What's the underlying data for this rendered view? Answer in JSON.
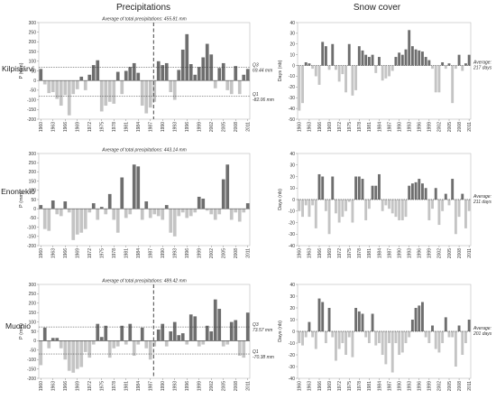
{
  "headers": {
    "precip": "Precipitations",
    "snow": "Snow cover"
  },
  "stations": [
    "Kilpisjärvi",
    "Enontekiö",
    "Muonio"
  ],
  "chart_data": [
    {
      "type": "bar",
      "station": "Kilpisjärvi",
      "variable": "precipitation",
      "title": "Average of total precipitations: 455.81 mm",
      "ylabel": "P (mm)",
      "ylim": [
        -200,
        300
      ],
      "yticks": [
        -200,
        -150,
        -100,
        -50,
        0,
        50,
        100,
        150,
        200,
        250,
        300
      ],
      "x": [
        1960,
        1961,
        1962,
        1963,
        1964,
        1965,
        1966,
        1967,
        1968,
        1969,
        1970,
        1971,
        1972,
        1973,
        1974,
        1975,
        1976,
        1977,
        1978,
        1979,
        1980,
        1981,
        1982,
        1983,
        1984,
        1985,
        1986,
        1987,
        1988,
        1989,
        1990,
        1991,
        1992,
        1993,
        1994,
        1995,
        1996,
        1997,
        1998,
        1999,
        2000,
        2001,
        2002,
        2003,
        2004,
        2005,
        2006,
        2007,
        2008,
        2009,
        2010,
        2011
      ],
      "xticks": [
        1960,
        1963,
        1966,
        1969,
        1972,
        1975,
        1978,
        1981,
        1984,
        1987,
        1990,
        1993,
        1996,
        1999,
        2002,
        2005,
        2008,
        2011
      ],
      "values": [
        60,
        -20,
        -65,
        -60,
        -95,
        -130,
        -75,
        -180,
        -70,
        -45,
        20,
        -50,
        30,
        80,
        105,
        -160,
        -130,
        -110,
        -120,
        45,
        -70,
        50,
        70,
        90,
        40,
        -130,
        -170,
        -140,
        -110,
        100,
        80,
        90,
        -60,
        -100,
        55,
        160,
        240,
        85,
        30,
        70,
        120,
        190,
        135,
        -40,
        65,
        90,
        -50,
        -70,
        75,
        -70,
        30,
        60
      ],
      "thresholds": [
        {
          "label": "Q3",
          "value_label": "69.44 mm",
          "value": 69.44
        },
        {
          "label": "Q1",
          "value_label": "-82.06 mm",
          "value": -82.06
        }
      ],
      "break_year": 1988.3
    },
    {
      "type": "bar",
      "station": "Kilpisjärvi",
      "variable": "snow cover",
      "ylabel": "Days (nb)",
      "ylim": [
        -50,
        40
      ],
      "yticks": [
        -50,
        -40,
        -30,
        -20,
        -10,
        0,
        10,
        20,
        30,
        40
      ],
      "x": [
        1960,
        1961,
        1962,
        1963,
        1964,
        1965,
        1966,
        1967,
        1968,
        1969,
        1970,
        1971,
        1972,
        1973,
        1974,
        1975,
        1976,
        1977,
        1978,
        1979,
        1980,
        1981,
        1982,
        1983,
        1984,
        1985,
        1986,
        1987,
        1988,
        1989,
        1990,
        1991,
        1992,
        1993,
        1994,
        1995,
        1996,
        1997,
        1998,
        1999,
        2000,
        2001,
        2002,
        2003,
        2004,
        2005,
        2006,
        2007,
        2008,
        2009,
        2010,
        2011
      ],
      "xticks": [
        1960,
        1963,
        1966,
        1969,
        1972,
        1975,
        1978,
        1981,
        1984,
        1987,
        1990,
        1993,
        1996,
        1999,
        2002,
        2005,
        2008,
        2011
      ],
      "values": [
        -42,
        -35,
        3,
        2,
        -3,
        -10,
        -18,
        22,
        18,
        -4,
        20,
        -4,
        -15,
        -8,
        -25,
        20,
        -28,
        -23,
        18,
        14,
        10,
        8,
        10,
        -7,
        8,
        -14,
        -12,
        -10,
        -5,
        8,
        12,
        10,
        15,
        33,
        18,
        15,
        14,
        13,
        8,
        5,
        -3,
        -25,
        -25,
        3,
        -3,
        2,
        -35,
        -3,
        10,
        -5,
        2,
        10
      ],
      "annotation": {
        "label": "Average:",
        "value_label": "217 days"
      }
    },
    {
      "type": "bar",
      "station": "Enontekiö",
      "variable": "precipitation",
      "title": "Average of total precipitations: 443.14 mm",
      "ylabel": "P (mm)",
      "ylim": [
        -200,
        300
      ],
      "yticks": [
        -200,
        -150,
        -100,
        -50,
        0,
        50,
        100,
        150,
        200,
        250,
        300
      ],
      "x": [
        1960,
        1961,
        1962,
        1963,
        1964,
        1965,
        1966,
        1967,
        1968,
        1969,
        1970,
        1971,
        1972,
        1973,
        1974,
        1975,
        1976,
        1977,
        1978,
        1979,
        1980,
        1981,
        1982,
        1983,
        1984,
        1985,
        1986,
        1987,
        1988,
        1989,
        1990,
        1991,
        1992,
        1993,
        1994,
        1995,
        1996,
        1997,
        1998,
        1999,
        2000,
        2001,
        2002,
        2003,
        2004,
        2005,
        2006,
        2007,
        2008,
        2009,
        2010,
        2011
      ],
      "xticks": [
        1960,
        1963,
        1966,
        1969,
        1972,
        1975,
        1978,
        1981,
        1984,
        1987,
        1990,
        1993,
        1996,
        1999,
        2002,
        2005,
        2008,
        2011
      ],
      "values": [
        20,
        -110,
        -120,
        45,
        -30,
        -40,
        40,
        -20,
        -170,
        -140,
        -130,
        -110,
        -20,
        30,
        -60,
        10,
        -30,
        80,
        -60,
        -130,
        170,
        -50,
        -30,
        240,
        230,
        -60,
        40,
        -50,
        -30,
        -40,
        -60,
        20,
        -130,
        -150,
        -40,
        -20,
        -50,
        -40,
        -20,
        65,
        55,
        -10,
        -30,
        -60,
        -30,
        160,
        240,
        -60,
        -20,
        -70,
        -20,
        30
      ],
      "break_year": null
    },
    {
      "type": "bar",
      "station": "Enontekiö",
      "variable": "snow cover",
      "ylabel": "Days (nb)",
      "ylim": [
        -40,
        40
      ],
      "yticks": [
        -40,
        -30,
        -20,
        -10,
        0,
        10,
        20,
        30,
        40
      ],
      "x": [
        1960,
        1961,
        1962,
        1963,
        1964,
        1965,
        1966,
        1967,
        1968,
        1969,
        1970,
        1971,
        1972,
        1973,
        1974,
        1975,
        1976,
        1977,
        1978,
        1979,
        1980,
        1981,
        1982,
        1983,
        1984,
        1985,
        1986,
        1987,
        1988,
        1989,
        1990,
        1991,
        1992,
        1993,
        1994,
        1995,
        1996,
        1997,
        1998,
        1999,
        2000,
        2001,
        2002,
        2003,
        2004,
        2005,
        2006,
        2007,
        2008,
        2009,
        2010,
        2011
      ],
      "xticks": [
        1960,
        1963,
        1966,
        1969,
        1972,
        1975,
        1978,
        1981,
        1984,
        1987,
        1990,
        1993,
        1996,
        1999,
        2002,
        2005,
        2008,
        2011
      ],
      "values": [
        -10,
        -15,
        -5,
        -15,
        -5,
        -25,
        22,
        20,
        -10,
        -30,
        20,
        -12,
        -20,
        -15,
        -10,
        -2,
        -20,
        20,
        20,
        18,
        -18,
        -8,
        12,
        12,
        22,
        -10,
        -5,
        -8,
        -12,
        -15,
        -18,
        -18,
        -15,
        12,
        14,
        15,
        18,
        14,
        10,
        -18,
        -8,
        10,
        -22,
        -10,
        5,
        -5,
        18,
        -30,
        -15,
        5,
        -25,
        -10
      ],
      "annotation": {
        "label": "Average:",
        "value_label": "211 days"
      }
    },
    {
      "type": "bar",
      "station": "Muonio",
      "variable": "precipitation",
      "title": "Average of total precipitations: 489.42 mm",
      "ylabel": "P (mm)",
      "ylim": [
        -200,
        300
      ],
      "yticks": [
        -200,
        -150,
        -100,
        -50,
        0,
        50,
        100,
        150,
        200,
        250,
        300
      ],
      "x": [
        1960,
        1961,
        1962,
        1963,
        1964,
        1965,
        1966,
        1967,
        1968,
        1969,
        1970,
        1971,
        1972,
        1973,
        1974,
        1975,
        1976,
        1977,
        1978,
        1979,
        1980,
        1981,
        1982,
        1983,
        1984,
        1985,
        1986,
        1987,
        1988,
        1989,
        1990,
        1991,
        1992,
        1993,
        1994,
        1995,
        1996,
        1997,
        1998,
        1999,
        2000,
        2001,
        2002,
        2003,
        2004,
        2005,
        2006,
        2007,
        2008,
        2009,
        2010,
        2011
      ],
      "xticks": [
        1960,
        1963,
        1966,
        1969,
        1972,
        1975,
        1978,
        1981,
        1984,
        1987,
        1990,
        1993,
        1996,
        1999,
        2002,
        2005,
        2008,
        2011
      ],
      "values": [
        -130,
        70,
        -40,
        15,
        15,
        -40,
        -100,
        -160,
        -170,
        -150,
        -140,
        -60,
        -90,
        -20,
        90,
        20,
        80,
        -90,
        -40,
        -30,
        80,
        -20,
        90,
        -80,
        -20,
        70,
        -40,
        -100,
        -30,
        60,
        90,
        -30,
        50,
        100,
        30,
        40,
        -20,
        140,
        130,
        -30,
        -20,
        80,
        50,
        220,
        170,
        -30,
        -20,
        100,
        110,
        -80,
        -90,
        150
      ],
      "thresholds": [
        {
          "label": "Q3",
          "value_label": "73.57 mm",
          "value": 73.57
        },
        {
          "label": "Q1",
          "value_label": "-70.38 mm",
          "value": -70.38
        }
      ],
      "break_year": 1988.3
    },
    {
      "type": "bar",
      "station": "Muonio",
      "variable": "snow cover",
      "ylabel": "Days (nb)",
      "ylim": [
        -40,
        40
      ],
      "yticks": [
        -40,
        -30,
        -20,
        -10,
        0,
        10,
        20,
        30,
        40
      ],
      "x": [
        1960,
        1961,
        1962,
        1963,
        1964,
        1965,
        1966,
        1967,
        1968,
        1969,
        1970,
        1971,
        1972,
        1973,
        1974,
        1975,
        1976,
        1977,
        1978,
        1979,
        1980,
        1981,
        1982,
        1983,
        1984,
        1985,
        1986,
        1987,
        1988,
        1989,
        1990,
        1991,
        1992,
        1993,
        1994,
        1995,
        1996,
        1997,
        1998,
        1999,
        2000,
        2001,
        2002,
        2003,
        2004,
        2005,
        2006,
        2007,
        2008,
        2009,
        2010,
        2011
      ],
      "xticks": [
        1960,
        1963,
        1966,
        1969,
        1972,
        1975,
        1978,
        1981,
        1984,
        1987,
        1990,
        1993,
        1996,
        1999,
        2002,
        2005,
        2008,
        2011
      ],
      "values": [
        -10,
        -12,
        -5,
        8,
        -5,
        -15,
        28,
        25,
        -10,
        20,
        -5,
        -25,
        -15,
        -10,
        -20,
        -5,
        -22,
        20,
        17,
        15,
        -5,
        -10,
        15,
        -12,
        -10,
        -20,
        -28,
        -10,
        -35,
        -10,
        -20,
        -18,
        -10,
        -5,
        10,
        20,
        22,
        25,
        -5,
        -10,
        5,
        -15,
        -18,
        -10,
        12,
        -5,
        -5,
        -30,
        5,
        -20,
        -10,
        10
      ],
      "annotation": {
        "label": "Average:",
        "value_label": "201 days"
      }
    }
  ]
}
